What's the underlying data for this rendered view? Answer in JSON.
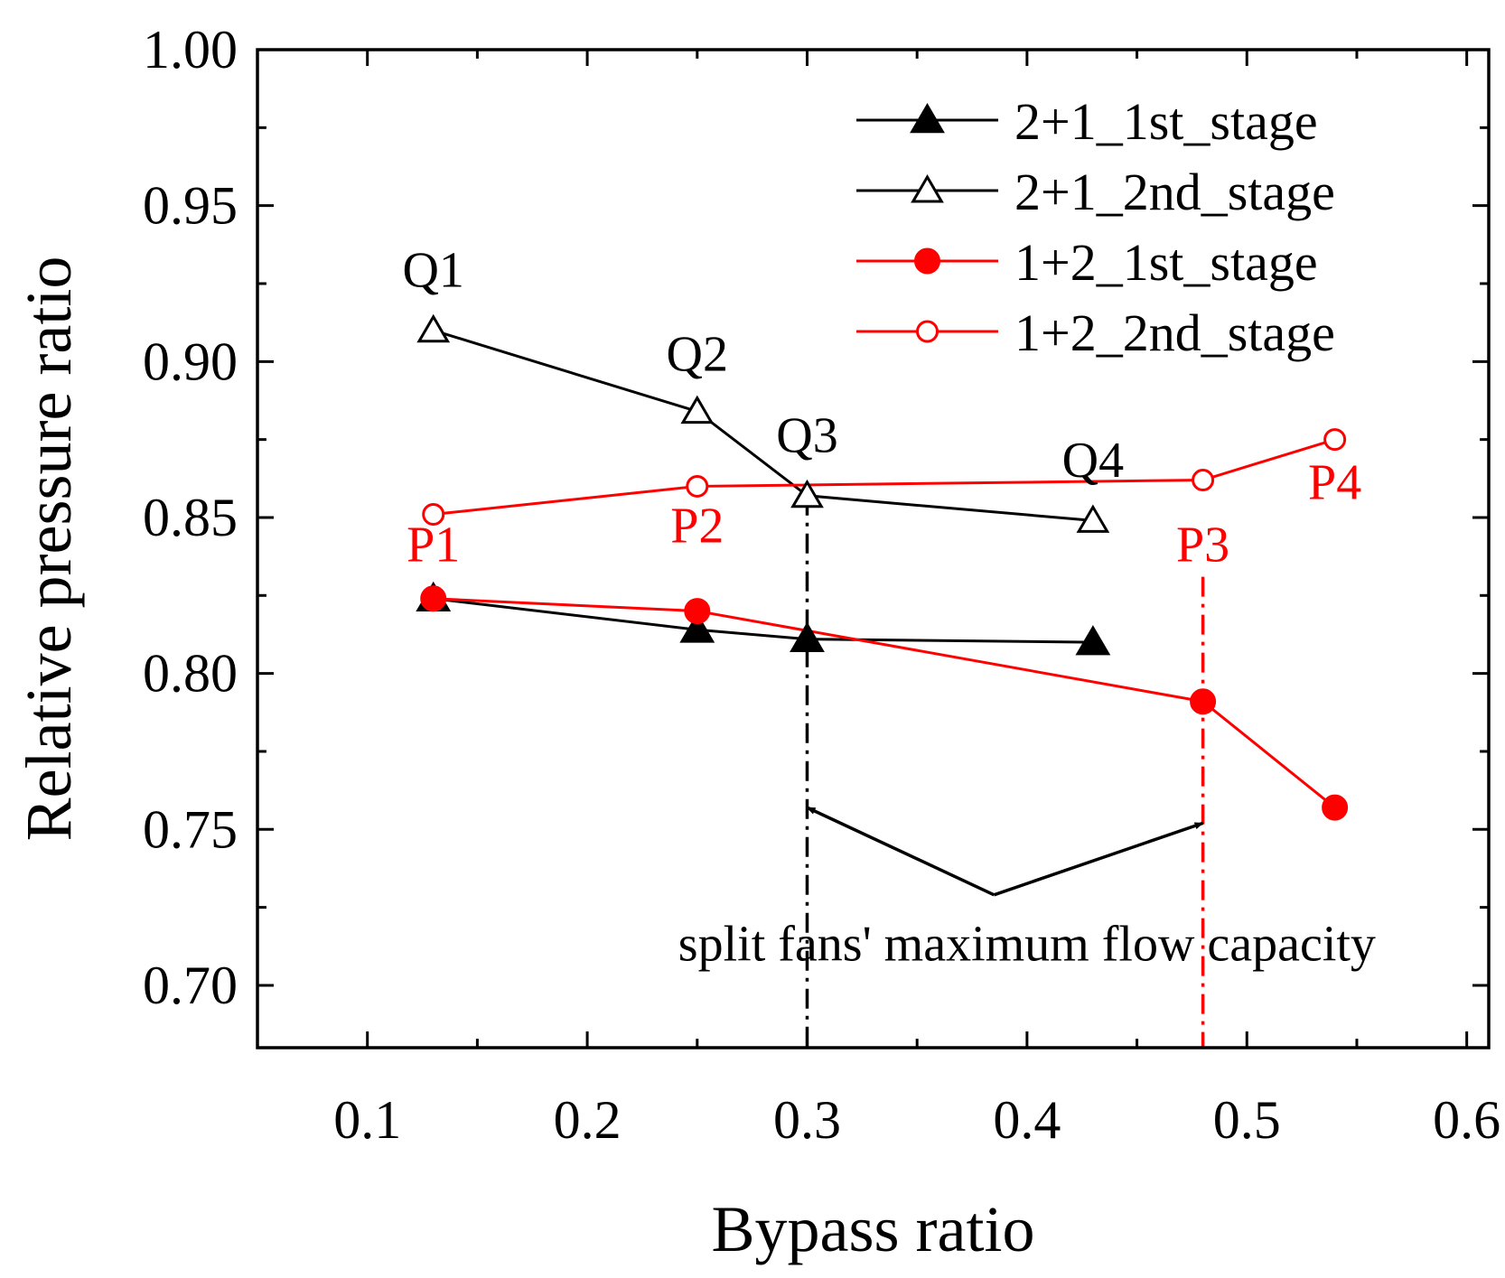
{
  "chart_data": {
    "type": "line",
    "title": "",
    "xlabel": "Bypass ratio",
    "ylabel": "Relative pressure ratio",
    "xlim": [
      0.05,
      0.61
    ],
    "ylim": [
      0.68,
      1.0
    ],
    "xticks": [
      0.1,
      0.2,
      0.3,
      0.4,
      0.5,
      0.6
    ],
    "xtick_labels": [
      "0.1",
      "0.2",
      "0.3",
      "0.4",
      "0.5",
      "0.6"
    ],
    "yticks": [
      0.7,
      0.75,
      0.8,
      0.85,
      0.9,
      0.95,
      1.0
    ],
    "ytick_labels": [
      "0.70",
      "0.75",
      "0.80",
      "0.85",
      "0.90",
      "0.95",
      "1.00"
    ],
    "legend_position": "top-right",
    "series": [
      {
        "name": "2+1_1st_stage",
        "color": "#000000",
        "marker": "triangle-filled",
        "x": [
          0.13,
          0.25,
          0.3,
          0.43
        ],
        "y": [
          0.824,
          0.814,
          0.811,
          0.81
        ]
      },
      {
        "name": "2+1_2nd_stage",
        "color": "#000000",
        "marker": "triangle-open",
        "x": [
          0.13,
          0.25,
          0.3,
          0.43
        ],
        "y": [
          0.91,
          0.884,
          0.857,
          0.849
        ]
      },
      {
        "name": "1+2_1st_stage",
        "color": "#ff0000",
        "marker": "circle-filled",
        "x": [
          0.13,
          0.25,
          0.48,
          0.54
        ],
        "y": [
          0.824,
          0.82,
          0.791,
          0.757
        ]
      },
      {
        "name": "1+2_2nd_stage",
        "color": "#ff0000",
        "marker": "circle-open",
        "x": [
          0.13,
          0.25,
          0.48,
          0.54
        ],
        "y": [
          0.851,
          0.86,
          0.862,
          0.875
        ]
      }
    ],
    "point_labels": [
      {
        "text": "Q1",
        "color": "#000000",
        "x": 0.13,
        "y": 0.924
      },
      {
        "text": "Q2",
        "color": "#000000",
        "x": 0.25,
        "y": 0.897
      },
      {
        "text": "Q3",
        "color": "#000000",
        "x": 0.3,
        "y": 0.871
      },
      {
        "text": "Q4",
        "color": "#000000",
        "x": 0.43,
        "y": 0.863
      },
      {
        "text": "P1",
        "color": "#ff0000",
        "x": 0.13,
        "y": 0.836
      },
      {
        "text": "P2",
        "color": "#ff0000",
        "x": 0.25,
        "y": 0.842
      },
      {
        "text": "P3",
        "color": "#ff0000",
        "x": 0.48,
        "y": 0.836
      },
      {
        "text": "P4",
        "color": "#ff0000",
        "x": 0.54,
        "y": 0.856
      }
    ],
    "reference_lines": [
      {
        "name": "split-2+1",
        "color": "#000000",
        "x": 0.3,
        "y_from": 0.68,
        "y_to": 0.857
      },
      {
        "name": "split-1+2",
        "color": "#ff0000",
        "x": 0.48,
        "y_from": 0.68,
        "y_to": 0.831
      }
    ],
    "annotation": {
      "text": "split fans' maximum flow capacity",
      "text_x": 0.4,
      "text_y": 0.708,
      "apex": [
        0.385,
        0.729
      ],
      "arrow_tips": [
        [
          0.3,
          0.757
        ],
        [
          0.48,
          0.752
        ]
      ]
    }
  }
}
